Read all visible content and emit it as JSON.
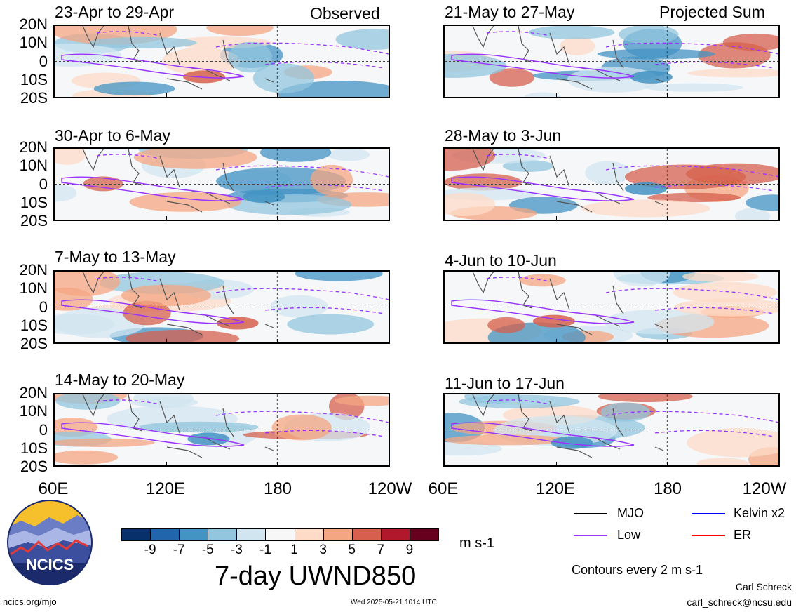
{
  "panels_left": [
    {
      "title": "23-Apr to 29-Apr",
      "tag": "Observed"
    },
    {
      "title": "30-Apr to 6-May",
      "tag": ""
    },
    {
      "title": "7-May to 13-May",
      "tag": ""
    },
    {
      "title": "14-May to 20-May",
      "tag": ""
    }
  ],
  "panels_right": [
    {
      "title": "21-May to 27-May",
      "tag": "Projected Sum"
    },
    {
      "title": "28-May to 3-Jun",
      "tag": ""
    },
    {
      "title": "4-Jun to 10-Jun",
      "tag": ""
    },
    {
      "title": "11-Jun to 17-Jun",
      "tag": ""
    }
  ],
  "y_ticks": [
    "20N",
    "10N",
    "0",
    "10S",
    "20S"
  ],
  "x_ticks": [
    "60E",
    "120E",
    "180",
    "120W"
  ],
  "colorbar": {
    "labels": [
      "-9",
      "-7",
      "-5",
      "-3",
      "-1",
      "1",
      "3",
      "5",
      "7",
      "9"
    ],
    "colors": [
      "#08306b",
      "#2166ac",
      "#4393c3",
      "#92c5de",
      "#d1e5f0",
      "#f7f7f7",
      "#fddbc7",
      "#f4a582",
      "#d6604d",
      "#b2182b",
      "#67001f"
    ],
    "units": "m s-1",
    "title": "7-day UWND850"
  },
  "legend": [
    {
      "label": "MJO",
      "color": "#000000"
    },
    {
      "label": "Kelvin x2",
      "color": "#0000ff"
    },
    {
      "label": "Low",
      "color": "#9933ff"
    },
    {
      "label": "ER",
      "color": "#ff0000"
    }
  ],
  "contour_note": "Contours every 2 m s-1",
  "logo_text": "NCICS",
  "footer": {
    "url": "ncics.org/mjo",
    "timestamp": "Wed 2025-05-21 1014 UTC",
    "author": "Carl Schreck",
    "email": "carl_schreck@ncsu.edu"
  }
}
